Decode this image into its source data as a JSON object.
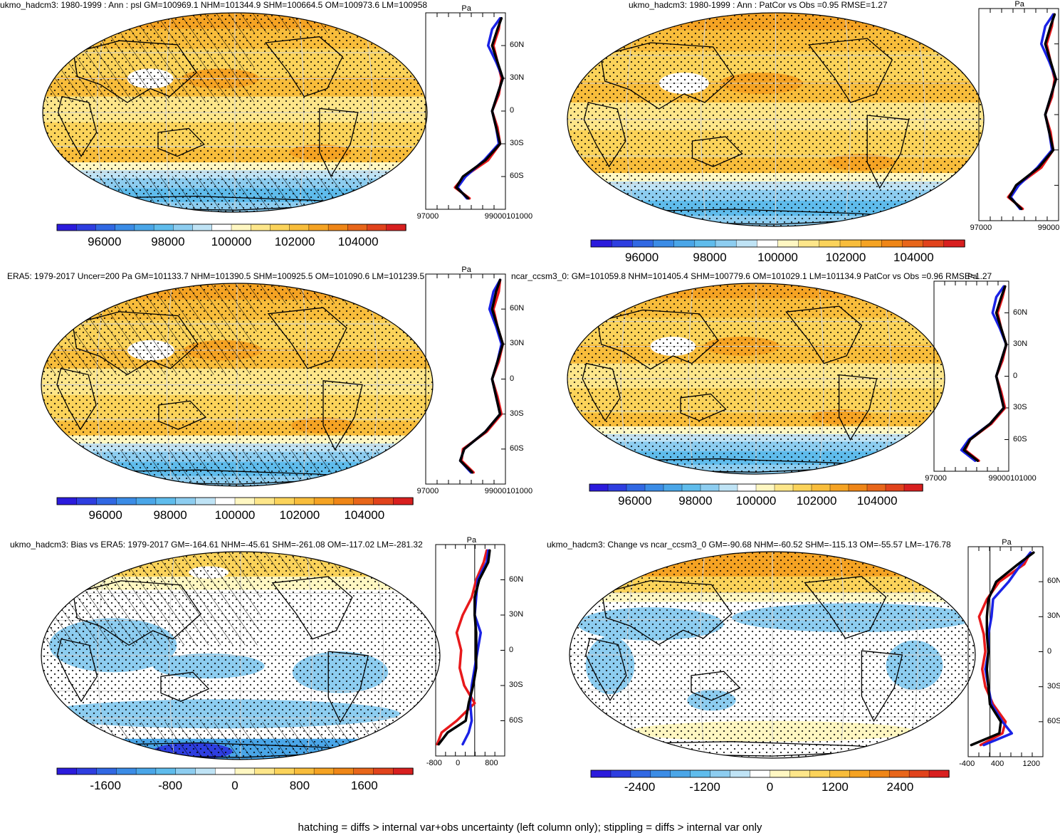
{
  "caption": "hatching = diffs > internal var+obs uncertainty (left column only); stippling = diffs > internal var only",
  "profile_unit": "Pa",
  "lat_ticks": [
    "60N",
    "30N",
    "0",
    "30S",
    "60S"
  ],
  "colors": {
    "model_line": "#e8191b",
    "reference_line": "#1a22e6",
    "obs_line": "#000000",
    "land_outline": "#000000",
    "grid": "#d0d0d0"
  },
  "chart_data": [
    {
      "type": "heatmap",
      "title": "ukmo_hadcm3: 1980-1999 : Ann : psl GM=100969.1 NHM=101344.9 SHM=100664.5 OM=100973.6 LM=100958",
      "colorbar": {
        "min": 94500,
        "max": 105500,
        "labels": [
          "96000",
          "98000",
          "100000",
          "102000",
          "104000"
        ]
      },
      "profile": {
        "xlim": [
          96000,
          102000
        ],
        "xticks": [
          "97000",
          "99000101000"
        ],
        "lat": [
          -80,
          -70,
          -60,
          -45,
          -30,
          -15,
          0,
          15,
          30,
          45,
          60,
          75,
          85
        ],
        "series": [
          {
            "color": "red",
            "values": [
              99300,
              98200,
              98900,
              100700,
              101600,
              101400,
              101000,
              101500,
              101700,
              101400,
              101100,
              101500,
              101600
            ]
          },
          {
            "color": "blue",
            "values": [
              99100,
              98400,
              99000,
              100400,
              101500,
              101300,
              101000,
              101400,
              101800,
              101300,
              100700,
              101000,
              101600
            ]
          },
          {
            "color": "black",
            "values": [
              99200,
              98300,
              98800,
              100500,
              101600,
              101300,
              101000,
              101400,
              101800,
              101400,
              101000,
              101400,
              101700
            ]
          }
        ]
      },
      "patterns": [
        "hatching",
        "stippling"
      ]
    },
    {
      "type": "heatmap",
      "title": "ukmo_hadcm3: 1980-1999 : Ann : PatCor vs Obs =0.95 RMSE=1.27",
      "colorbar": {
        "min": 94500,
        "max": 105500,
        "labels": [
          "96000",
          "98000",
          "100000",
          "102000",
          "104000"
        ]
      },
      "profile": {
        "xlim": [
          96000,
          102000
        ],
        "xticks": [
          "97000",
          "99000101000"
        ],
        "lat": [
          -80,
          -70,
          -60,
          -45,
          -30,
          -15,
          0,
          15,
          30,
          45,
          60,
          75,
          85
        ],
        "series": [
          {
            "color": "red",
            "values": [
              99300,
              98200,
              98900,
              100700,
              101600,
              101400,
              101000,
              101500,
              101700,
              101400,
              101100,
              101500,
              101600
            ]
          },
          {
            "color": "blue",
            "values": [
              99100,
              98400,
              99000,
              100400,
              101500,
              101300,
              101000,
              101400,
              101800,
              101300,
              100700,
              101000,
              101600
            ]
          },
          {
            "color": "black",
            "values": [
              99200,
              98300,
              98800,
              100500,
              101600,
              101300,
              101000,
              101400,
              101800,
              101400,
              101000,
              101400,
              101700
            ]
          }
        ]
      },
      "patterns": [
        "stippling"
      ]
    },
    {
      "type": "heatmap",
      "title": "ERA5: 1979-2017 Uncer=200 Pa GM=101133.7 NHM=101390.5 SHM=100925.5 OM=101090.6 LM=101239.5",
      "colorbar": {
        "min": 94500,
        "max": 105500,
        "labels": [
          "96000",
          "98000",
          "100000",
          "102000",
          "104000"
        ]
      },
      "profile": {
        "xlim": [
          96000,
          102000
        ],
        "xticks": [
          "97000",
          "99000101000"
        ],
        "lat": [
          -80,
          -70,
          -60,
          -45,
          -30,
          -15,
          0,
          15,
          30,
          45,
          60,
          75,
          85
        ],
        "series": [
          {
            "color": "red",
            "values": [
              99600,
              98700,
              98800,
              100600,
              101700,
              101400,
              101000,
              101500,
              101800,
              101400,
              101100,
              101500,
              101600
            ]
          },
          {
            "color": "blue",
            "values": [
              99400,
              98600,
              98900,
              100500,
              101600,
              101300,
              101000,
              101400,
              101700,
              101300,
              100800,
              101100,
              101600
            ]
          },
          {
            "color": "black",
            "values": [
              99500,
              98600,
              98900,
              100500,
              101600,
              101300,
              101000,
              101400,
              101800,
              101400,
              101000,
              101300,
              101600
            ]
          }
        ]
      },
      "patterns": [
        "hatching",
        "stippling"
      ]
    },
    {
      "type": "heatmap",
      "title": "ncar_ccsm3_0: GM=101059.8 NHM=101405.4 SHM=100779.6 OM=101029.1 LM=101134.9 PatCor vs Obs =0.96 RMSE=1.27",
      "colorbar": {
        "min": 94500,
        "max": 105500,
        "labels": [
          "96000",
          "98000",
          "100000",
          "102000",
          "104000"
        ]
      },
      "profile": {
        "xlim": [
          96000,
          102000
        ],
        "xticks": [
          "97000",
          "99000101000"
        ],
        "lat": [
          -80,
          -70,
          -60,
          -45,
          -30,
          -15,
          0,
          15,
          30,
          45,
          60,
          75,
          85
        ],
        "series": [
          {
            "color": "red",
            "values": [
              99600,
              98500,
              98900,
              100600,
              101700,
              101400,
              101000,
              101500,
              101800,
              101400,
              101100,
              101500,
              101700
            ]
          },
          {
            "color": "blue",
            "values": [
              99300,
              98200,
              98800,
              100500,
              101600,
              101300,
              101000,
              101400,
              101800,
              101300,
              100700,
              101000,
              101600
            ]
          },
          {
            "color": "black",
            "values": [
              99500,
              98400,
              98900,
              100500,
              101600,
              101300,
              101000,
              101400,
              101800,
              101400,
              101000,
              101400,
              101700
            ]
          }
        ]
      },
      "patterns": [
        "stippling"
      ]
    },
    {
      "type": "heatmap",
      "title": "ukmo_hadcm3: Bias vs ERA5: 1979-2017 GM=-164.61 NHM=-45.61 SHM=-261.08 OM=-117.02 LM=-281.32",
      "colorbar": {
        "min": -2200,
        "max": 2200,
        "labels": [
          "-1600",
          "-800",
          "0",
          "800",
          "1600"
        ]
      },
      "profile": {
        "xlim": [
          -1300,
          1000
        ],
        "xticks": [
          "-800",
          "0",
          "800"
        ],
        "zero_line": true,
        "lat": [
          -80,
          -70,
          -60,
          -45,
          -30,
          -15,
          0,
          15,
          30,
          45,
          60,
          75,
          85
        ],
        "series": [
          {
            "color": "red",
            "values": [
              -1250,
              -1100,
              -600,
              0,
              -350,
              -500,
              -450,
              -600,
              -400,
              -100,
              50,
              300,
              400
            ]
          },
          {
            "color": "blue",
            "values": [
              -400,
              -200,
              -100,
              -150,
              -100,
              0,
              100,
              200,
              0,
              50,
              100,
              400,
              450
            ]
          },
          {
            "color": "black",
            "values": [
              -1200,
              -900,
              -300,
              -200,
              -50,
              50,
              50,
              50,
              0,
              0,
              150,
              450,
              500
            ]
          }
        ]
      },
      "patterns": [
        "hatching",
        "stippling"
      ]
    },
    {
      "type": "heatmap",
      "title": "ukmo_hadcm3: Change vs ncar_ccsm3_0 GM=-90.68 NHM=-60.52 SHM=-115.13 OM=-55.57 LM=-176.78",
      "colorbar": {
        "min": -3300,
        "max": 3300,
        "labels": [
          "-2400",
          "-1200",
          "0",
          "1200",
          "2400"
        ]
      },
      "profile": {
        "xlim": [
          -700,
          1700
        ],
        "xticks": [
          "-400",
          "400",
          "1200"
        ],
        "zero_line": true,
        "lat": [
          -80,
          -70,
          -60,
          -45,
          -30,
          -15,
          0,
          15,
          30,
          45,
          60,
          75,
          85
        ],
        "series": [
          {
            "color": "red",
            "values": [
              -300,
              400,
              500,
              100,
              -150,
              -250,
              -150,
              -200,
              -350,
              -100,
              300,
              1100,
              1300
            ]
          },
          {
            "color": "blue",
            "values": [
              -200,
              700,
              400,
              50,
              -50,
              -150,
              -50,
              -50,
              50,
              100,
              600,
              1000,
              1300
            ]
          },
          {
            "color": "black",
            "values": [
              -600,
              300,
              350,
              0,
              -50,
              -100,
              -50,
              -100,
              -100,
              -50,
              200,
              900,
              1400
            ]
          }
        ]
      },
      "patterns": [
        "stippling"
      ]
    }
  ]
}
